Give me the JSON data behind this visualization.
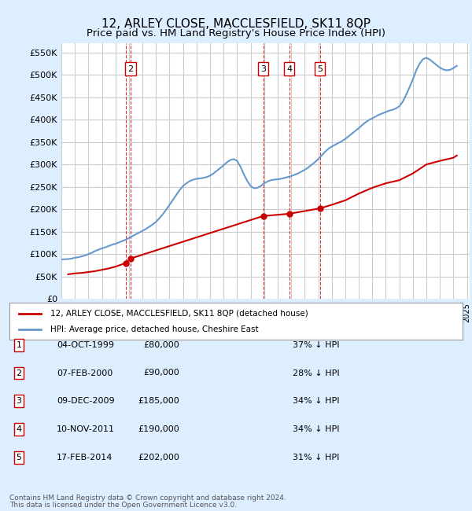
{
  "title": "12, ARLEY CLOSE, MACCLESFIELD, SK11 8QP",
  "subtitle": "Price paid vs. HM Land Registry's House Price Index (HPI)",
  "legend_line1": "12, ARLEY CLOSE, MACCLESFIELD, SK11 8QP (detached house)",
  "legend_line2": "HPI: Average price, detached house, Cheshire East",
  "footer1": "Contains HM Land Registry data © Crown copyright and database right 2024.",
  "footer2": "This data is licensed under the Open Government Licence v3.0.",
  "ylim": [
    0,
    570000
  ],
  "yticks": [
    0,
    50000,
    100000,
    150000,
    200000,
    250000,
    300000,
    350000,
    400000,
    450000,
    500000,
    550000
  ],
  "ylabel_format": "£{0}K",
  "transactions": [
    {
      "num": 1,
      "date_str": "04-OCT-1999",
      "price": 80000,
      "pct": "37%",
      "year": 1999.75
    },
    {
      "num": 2,
      "date_str": "07-FEB-2000",
      "price": 90000,
      "pct": "28%",
      "year": 2000.1
    },
    {
      "num": 3,
      "date_str": "09-DEC-2009",
      "price": 185000,
      "pct": "34%",
      "year": 2009.93
    },
    {
      "num": 4,
      "date_str": "10-NOV-2011",
      "price": 190000,
      "pct": "34%",
      "year": 2011.85
    },
    {
      "num": 5,
      "date_str": "17-FEB-2014",
      "price": 202000,
      "pct": "31%",
      "year": 2014.12
    }
  ],
  "hpi_line_color": "#6699cc",
  "price_line_color": "#cc0000",
  "vline_color": "#cc0000",
  "grid_color": "#cccccc",
  "background_color": "#ddeeff",
  "plot_bg_color": "#ffffff",
  "hpi_data": {
    "years": [
      1995.0,
      1995.25,
      1995.5,
      1995.75,
      1996.0,
      1996.25,
      1996.5,
      1996.75,
      1997.0,
      1997.25,
      1997.5,
      1997.75,
      1998.0,
      1998.25,
      1998.5,
      1998.75,
      1999.0,
      1999.25,
      1999.5,
      1999.75,
      2000.0,
      2000.25,
      2000.5,
      2000.75,
      2001.0,
      2001.25,
      2001.5,
      2001.75,
      2002.0,
      2002.25,
      2002.5,
      2002.75,
      2003.0,
      2003.25,
      2003.5,
      2003.75,
      2004.0,
      2004.25,
      2004.5,
      2004.75,
      2005.0,
      2005.25,
      2005.5,
      2005.75,
      2006.0,
      2006.25,
      2006.5,
      2006.75,
      2007.0,
      2007.25,
      2007.5,
      2007.75,
      2008.0,
      2008.25,
      2008.5,
      2008.75,
      2009.0,
      2009.25,
      2009.5,
      2009.75,
      2010.0,
      2010.25,
      2010.5,
      2010.75,
      2011.0,
      2011.25,
      2011.5,
      2011.75,
      2012.0,
      2012.25,
      2012.5,
      2012.75,
      2013.0,
      2013.25,
      2013.5,
      2013.75,
      2014.0,
      2014.25,
      2014.5,
      2014.75,
      2015.0,
      2015.25,
      2015.5,
      2015.75,
      2016.0,
      2016.25,
      2016.5,
      2016.75,
      2017.0,
      2017.25,
      2017.5,
      2017.75,
      2018.0,
      2018.25,
      2018.5,
      2018.75,
      2019.0,
      2019.25,
      2019.5,
      2019.75,
      2020.0,
      2020.25,
      2020.5,
      2020.75,
      2021.0,
      2021.25,
      2021.5,
      2021.75,
      2022.0,
      2022.25,
      2022.5,
      2022.75,
      2023.0,
      2023.25,
      2023.5,
      2023.75,
      2024.0,
      2024.25
    ],
    "values": [
      88000,
      88500,
      89000,
      90000,
      92000,
      93000,
      95000,
      97000,
      100000,
      103000,
      107000,
      110000,
      113000,
      115000,
      118000,
      121000,
      123000,
      126000,
      129000,
      132000,
      136000,
      140000,
      144000,
      148000,
      152000,
      156000,
      161000,
      166000,
      172000,
      180000,
      189000,
      199000,
      210000,
      221000,
      232000,
      243000,
      252000,
      258000,
      263000,
      266000,
      268000,
      269000,
      270000,
      272000,
      275000,
      280000,
      286000,
      292000,
      298000,
      305000,
      310000,
      312000,
      308000,
      295000,
      278000,
      263000,
      252000,
      247000,
      248000,
      252000,
      258000,
      262000,
      265000,
      266000,
      267000,
      268000,
      270000,
      272000,
      274000,
      277000,
      280000,
      284000,
      288000,
      293000,
      299000,
      305000,
      312000,
      320000,
      328000,
      335000,
      340000,
      344000,
      348000,
      352000,
      357000,
      363000,
      369000,
      375000,
      381000,
      388000,
      394000,
      399000,
      403000,
      407000,
      411000,
      414000,
      417000,
      420000,
      422000,
      425000,
      430000,
      440000,
      455000,
      472000,
      490000,
      510000,
      525000,
      535000,
      538000,
      534000,
      528000,
      522000,
      516000,
      512000,
      510000,
      511000,
      515000,
      520000
    ]
  },
  "price_data": {
    "years": [
      1995.5,
      1996.0,
      1996.5,
      1997.0,
      1997.5,
      1998.0,
      1998.5,
      1999.0,
      1999.75,
      2000.1,
      2009.93,
      2011.85,
      2014.12,
      2015.0,
      2016.0,
      2017.0,
      2018.0,
      2019.0,
      2020.0,
      2021.0,
      2022.0,
      2023.0,
      2024.0,
      2024.25
    ],
    "values": [
      55000,
      57000,
      58000,
      60000,
      62000,
      65000,
      68000,
      72000,
      80000,
      90000,
      185000,
      190000,
      202000,
      210000,
      220000,
      235000,
      248000,
      258000,
      265000,
      280000,
      300000,
      308000,
      315000,
      320000
    ]
  }
}
